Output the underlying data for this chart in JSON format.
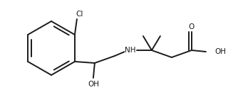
{
  "background_color": "#ffffff",
  "line_color": "#1a1a1a",
  "lw": 1.4,
  "fs": 7.5,
  "figsize": [
    3.34,
    1.37
  ],
  "dpi": 100,
  "xlim": [
    0,
    334
  ],
  "ylim": [
    0,
    137
  ]
}
